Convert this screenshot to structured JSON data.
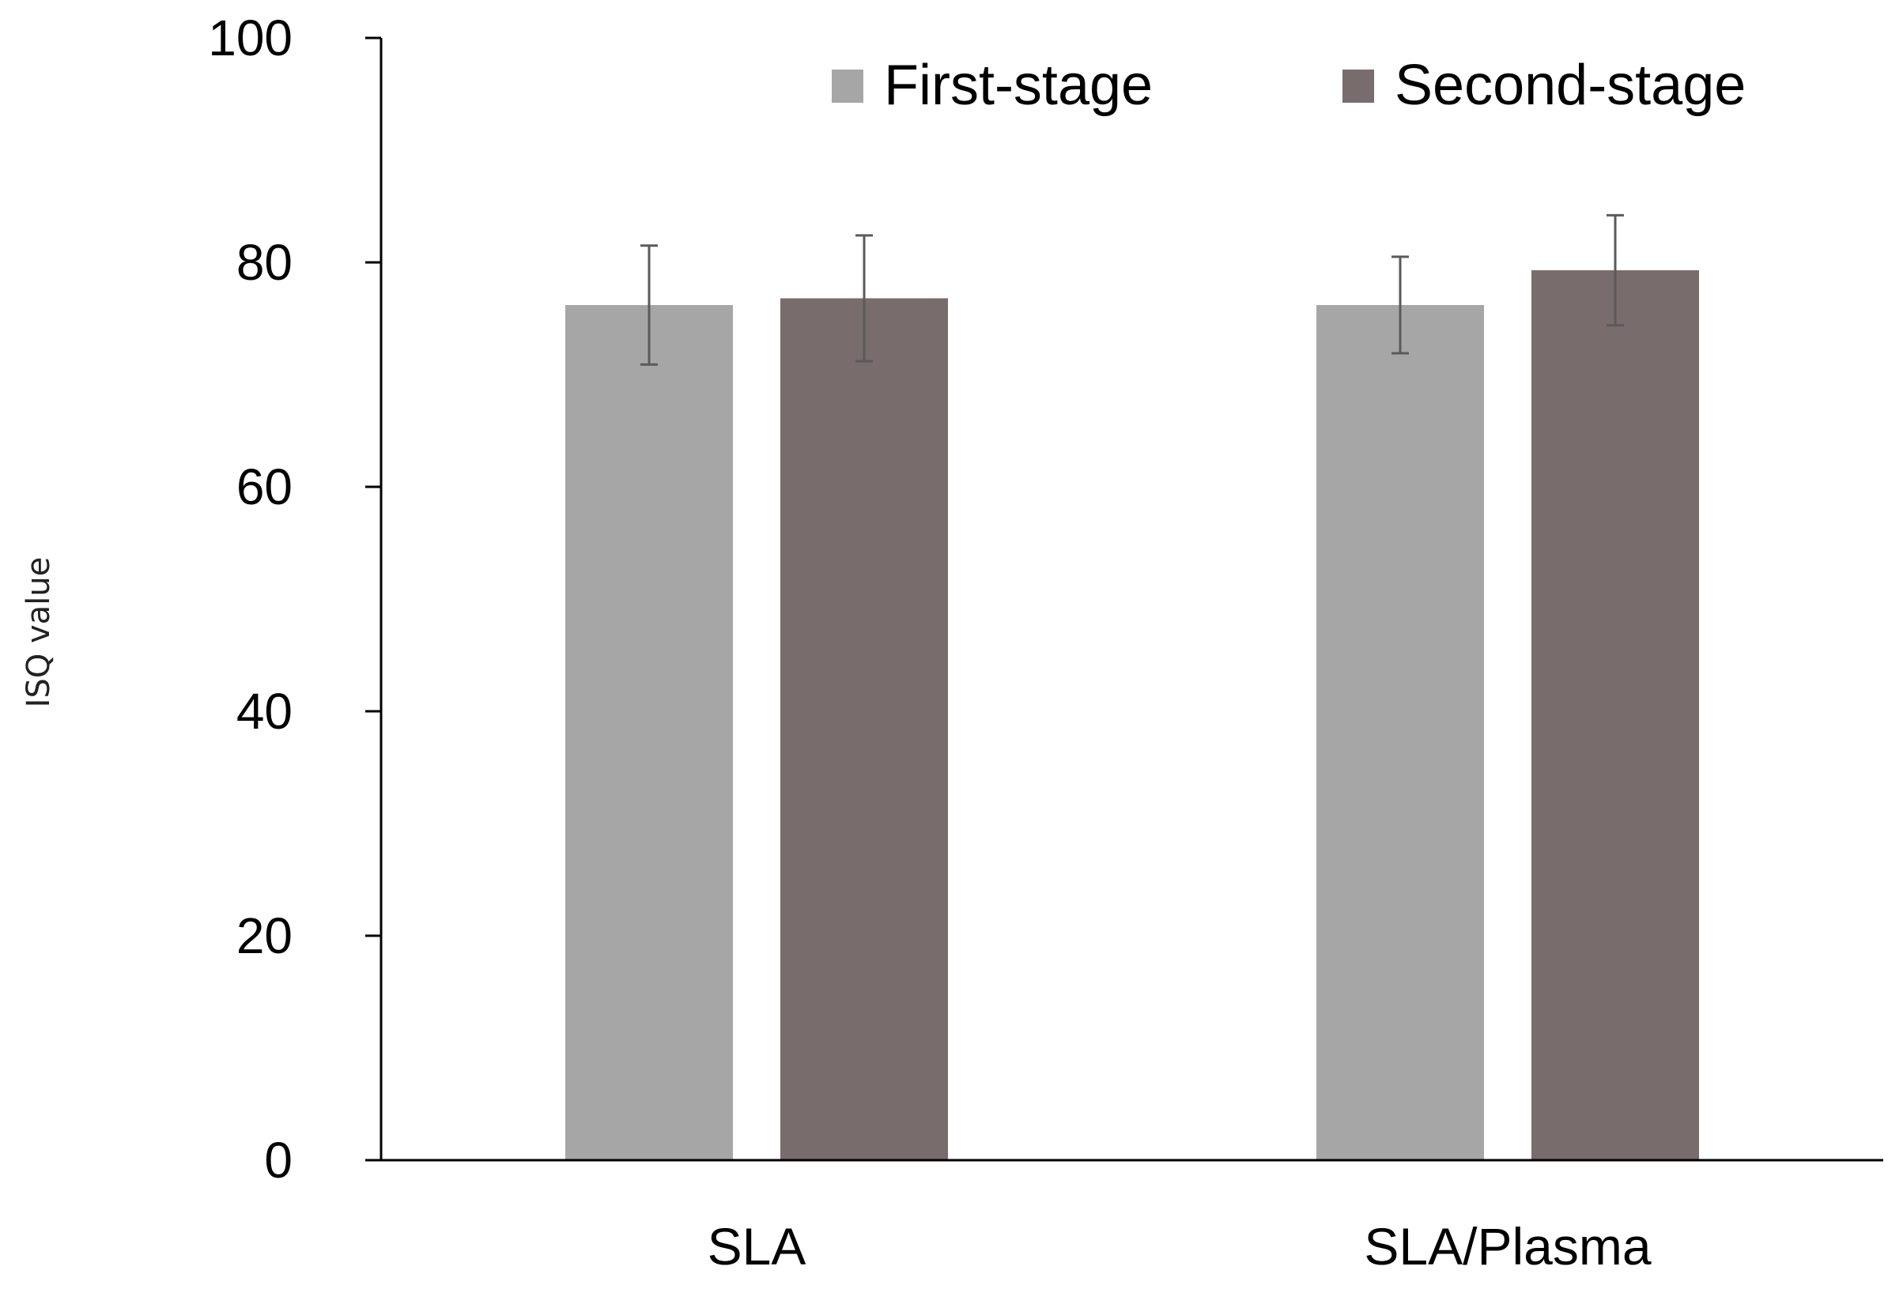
{
  "chart_data": {
    "type": "bar",
    "title": "",
    "xlabel": "",
    "ylabel": "ISQ value",
    "ylim": [
      0,
      100
    ],
    "yticks": [
      0,
      20,
      40,
      60,
      80,
      100
    ],
    "categories": [
      "SLA",
      "SLA/Plasma"
    ],
    "series": [
      {
        "name": "First-stage",
        "color": "#a6a6a6",
        "values": [
          76.2,
          76.2
        ],
        "errors": [
          5.3,
          4.3
        ]
      },
      {
        "name": "Second-stage",
        "color": "#786c6c",
        "values": [
          76.8,
          79.3
        ],
        "errors": [
          5.6,
          4.9
        ]
      }
    ],
    "grid": false,
    "legend_position": "top-right"
  }
}
